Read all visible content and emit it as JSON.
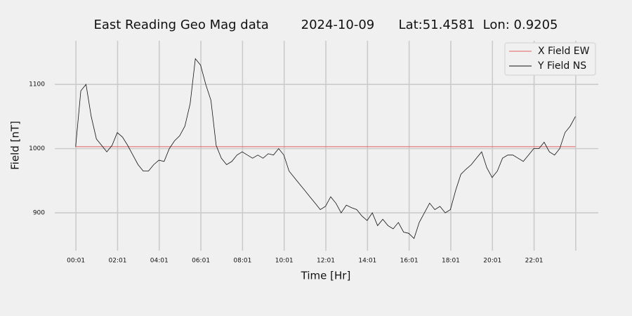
{
  "chart_data": {
    "type": "line",
    "title": "East Reading Geo Mag data        2024-10-09      Lat:51.4581  Lon: 0.9205",
    "x_label": "Time  [Hr]",
    "y_label": "Field  [nT]",
    "x": [
      0,
      0.25,
      0.5,
      0.75,
      1,
      1.25,
      1.5,
      1.75,
      2,
      2.25,
      2.5,
      2.75,
      3,
      3.25,
      3.5,
      3.75,
      4,
      4.25,
      4.5,
      4.75,
      5,
      5.25,
      5.5,
      5.75,
      6,
      6.25,
      6.5,
      6.75,
      7,
      7.25,
      7.5,
      7.75,
      8,
      8.25,
      8.5,
      8.75,
      9,
      9.25,
      9.5,
      9.75,
      10,
      10.25,
      10.5,
      10.75,
      11,
      11.25,
      11.5,
      11.75,
      12,
      12.25,
      12.5,
      12.75,
      13,
      13.25,
      13.5,
      13.75,
      14,
      14.25,
      14.5,
      14.75,
      15,
      15.25,
      15.5,
      15.75,
      16,
      16.25,
      16.5,
      16.75,
      17,
      17.25,
      17.5,
      17.75,
      18,
      18.25,
      18.5,
      18.75,
      19,
      19.25,
      19.5,
      19.75,
      20,
      20.25,
      20.5,
      20.75,
      21,
      21.25,
      21.5,
      21.75,
      22,
      22.25,
      22.5,
      22.75,
      23,
      23.25,
      23.5,
      23.75,
      24
    ],
    "series": [
      {
        "name": "X Field EW",
        "color": "#e06060",
        "x": [
          0,
          24
        ],
        "values": [
          1003,
          1003
        ]
      },
      {
        "name": "Y Field NS",
        "color": "#111111",
        "values": [
          1003,
          1090,
          1100,
          1050,
          1015,
          1005,
          995,
          1005,
          1025,
          1018,
          1005,
          990,
          975,
          965,
          965,
          975,
          982,
          980,
          1000,
          1012,
          1020,
          1035,
          1070,
          1140,
          1130,
          1100,
          1075,
          1005,
          985,
          975,
          980,
          990,
          995,
          990,
          985,
          990,
          985,
          992,
          990,
          1000,
          990,
          965,
          955,
          945,
          935,
          925,
          915,
          905,
          910,
          925,
          915,
          900,
          912,
          908,
          905,
          895,
          888,
          900,
          880,
          890,
          880,
          875,
          885,
          870,
          868,
          860,
          885,
          900,
          915,
          905,
          910,
          900,
          905,
          935,
          960,
          968,
          975,
          985,
          995,
          970,
          955,
          965,
          985,
          990,
          990,
          985,
          980,
          990,
          1000,
          1000,
          1010,
          995,
          990,
          1000,
          1025,
          1035,
          1050
        ]
      }
    ],
    "xlim": [
      -1.0,
      25.1
    ],
    "xticks": [
      {
        "value": 0.0167,
        "label": "00:01"
      },
      {
        "value": 2.0167,
        "label": "02:01"
      },
      {
        "value": 4.0167,
        "label": "04:01"
      },
      {
        "value": 6.0167,
        "label": "06:01"
      },
      {
        "value": 8.0167,
        "label": "08:01"
      },
      {
        "value": 10.0167,
        "label": "10:01"
      },
      {
        "value": 12.0167,
        "label": "12:01"
      },
      {
        "value": 14.0167,
        "label": "14:01"
      },
      {
        "value": 16.0167,
        "label": "16:01"
      },
      {
        "value": 18.0167,
        "label": "18:01"
      },
      {
        "value": 20.0167,
        "label": "20:01"
      },
      {
        "value": 22.0167,
        "label": "22:01"
      },
      {
        "value": 24.0167,
        "label": null
      }
    ],
    "ylim": [
      841,
      1168
    ],
    "yticks": [
      900,
      1000,
      1100
    ],
    "grid": true,
    "legend": "upper right"
  }
}
